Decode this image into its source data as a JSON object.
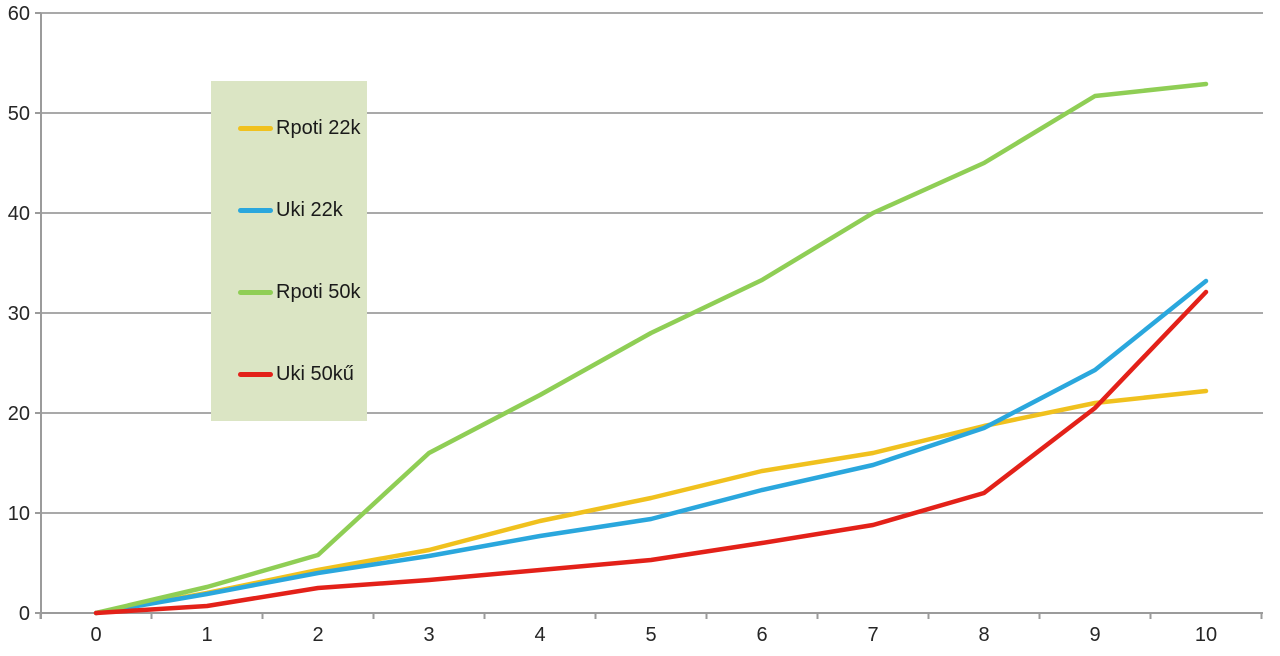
{
  "chart": {
    "background": "#ffffff",
    "grid_color": "#a9a9a9",
    "axis_color": "#9b9b9b",
    "text_color": "#262626",
    "legend": {
      "background": "#dbe5c4",
      "items": [
        {
          "label": "Rpoti 22k",
          "color": "#f0c11e"
        },
        {
          "label": "Uki 22k",
          "color": "#2aa7dd"
        },
        {
          "label": "Rpoti 50k",
          "color": "#8fce55"
        },
        {
          "label": "Uki 50kű",
          "color": "#e32119"
        }
      ]
    }
  },
  "chart_data": {
    "type": "line",
    "title": "",
    "xlabel": "",
    "ylabel": "",
    "x": [
      0,
      1,
      2,
      3,
      4,
      5,
      6,
      7,
      8,
      9,
      10
    ],
    "xticks": [
      "0",
      "1",
      "2",
      "3",
      "4",
      "5",
      "6",
      "7",
      "8",
      "9",
      "10"
    ],
    "yticks": [
      0,
      10,
      20,
      30,
      40,
      50,
      60
    ],
    "ylim": [
      0,
      60
    ],
    "grid": true,
    "legend_position": "inside-upper-left",
    "series": [
      {
        "name": "Rpoti 22k",
        "color": "#f0c11e",
        "values": [
          0,
          2.0,
          4.3,
          6.3,
          9.2,
          11.5,
          14.2,
          16.0,
          18.7,
          21.0,
          22.2
        ]
      },
      {
        "name": "Uki 22k",
        "color": "#2aa7dd",
        "values": [
          0,
          1.9,
          4.0,
          5.7,
          7.7,
          9.4,
          12.3,
          14.8,
          18.5,
          24.3,
          33.2
        ]
      },
      {
        "name": "Rpoti 50k",
        "color": "#8fce55",
        "values": [
          0,
          2.6,
          5.8,
          16.0,
          21.8,
          28.0,
          33.3,
          40.0,
          45.0,
          51.7,
          52.9
        ]
      },
      {
        "name": "Uki 50kű",
        "color": "#e32119",
        "values": [
          0,
          0.7,
          2.5,
          3.3,
          4.3,
          5.3,
          7.0,
          8.8,
          12.0,
          20.5,
          32.1
        ]
      }
    ]
  }
}
